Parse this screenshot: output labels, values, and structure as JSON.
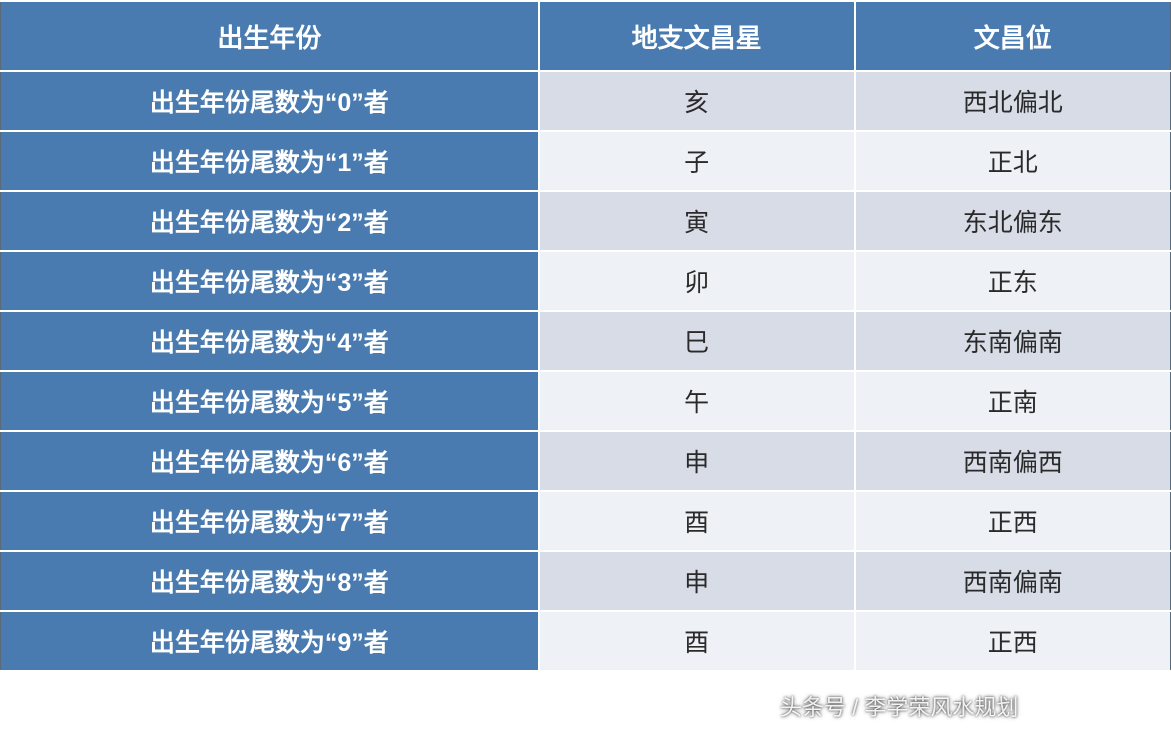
{
  "table": {
    "header_bg": "#4a7bb0",
    "header_text_color": "#ffffff",
    "firstcol_bg": "#4a7bb0",
    "firstcol_text_color": "#ffffff",
    "data_text_color": "#2a2a2a",
    "stripe_odd_bg": "#d7dce7",
    "stripe_even_bg": "#eef1f6",
    "gap_color": "#ffffff",
    "outer_border_color": "#5b6a7a",
    "header_fontsize": 26,
    "firstcol_fontsize": 25,
    "data_fontsize": 25,
    "columns": [
      "出生年份",
      "地支文昌星",
      "文昌位"
    ],
    "col_widths_pct": [
      46,
      27,
      27
    ],
    "rows": [
      [
        "出生年份尾数为“0”者",
        "亥",
        "西北偏北"
      ],
      [
        "出生年份尾数为“1”者",
        "子",
        "正北"
      ],
      [
        "出生年份尾数为“2”者",
        "寅",
        "东北偏东"
      ],
      [
        "出生年份尾数为“3”者",
        "卯",
        "正东"
      ],
      [
        "出生年份尾数为“4”者",
        "巳",
        "东南偏南"
      ],
      [
        "出生年份尾数为“5”者",
        "午",
        "正南"
      ],
      [
        "出生年份尾数为“6”者",
        "申",
        "西南偏西"
      ],
      [
        "出生年份尾数为“7”者",
        "酉",
        "正西"
      ],
      [
        "出生年份尾数为“8”者",
        "申",
        "西南偏南"
      ],
      [
        "出生年份尾数为“9”者",
        "酉",
        "正西"
      ]
    ]
  },
  "watermark": "头条号 / 李学荣风水规划"
}
